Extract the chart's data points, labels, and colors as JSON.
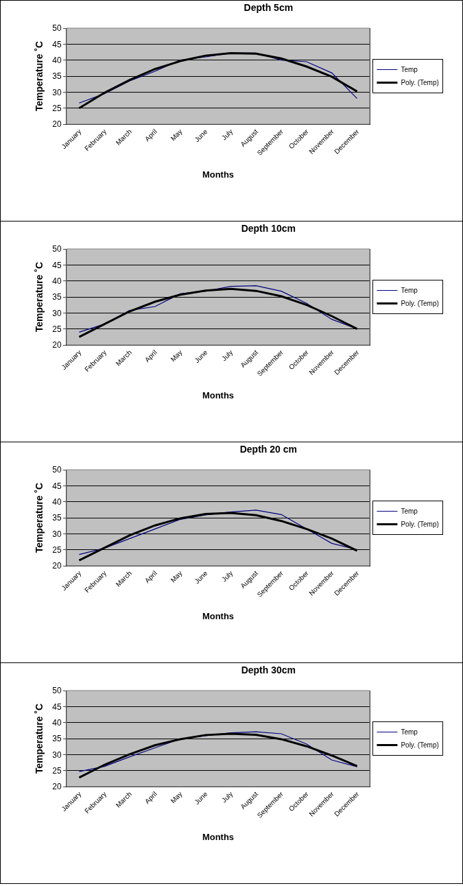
{
  "chart_data": [
    {
      "type": "line",
      "title": "Depth 5cm",
      "xlabel": "Months",
      "ylabel": "Temperature ˚C",
      "categories": [
        "January",
        "February",
        "March",
        "April",
        "May",
        "June",
        "July",
        "August",
        "September",
        "October",
        "November",
        "December"
      ],
      "series": [
        {
          "name": "Temp",
          "color": "#000080",
          "values": [
            26.6,
            29.5,
            33.5,
            36.5,
            40,
            41,
            42.2,
            42.2,
            40,
            39.5,
            36,
            28
          ]
        },
        {
          "name": "Poly. (Temp)",
          "color": "#000000",
          "values": [
            25,
            29.8,
            33.8,
            37.2,
            39.7,
            41.4,
            42.2,
            42,
            40.5,
            38,
            34.8,
            30.2
          ]
        }
      ],
      "ylim": [
        20,
        50
      ],
      "yticks": [
        20,
        25,
        30,
        35,
        40,
        45,
        50
      ],
      "grid": "y",
      "legend": "right",
      "marker": "none",
      "line_style": "solid"
    },
    {
      "type": "line",
      "title": "Depth 10cm",
      "xlabel": "Months",
      "ylabel": "Temperature ˚C",
      "categories": [
        "January",
        "February",
        "March",
        "April",
        "May",
        "June",
        "July",
        "August",
        "September",
        "October",
        "November",
        "December"
      ],
      "series": [
        {
          "name": "Temp",
          "color": "#000080",
          "values": [
            24,
            26.5,
            30.8,
            32,
            36,
            36.8,
            38.3,
            38.5,
            36.8,
            33,
            28,
            25
          ]
        },
        {
          "name": "Poly. (Temp)",
          "color": "#000000",
          "values": [
            22.5,
            26.5,
            30.5,
            33.5,
            35.7,
            37,
            37.5,
            36.9,
            35.2,
            32.5,
            29,
            25
          ]
        }
      ],
      "ylim": [
        20,
        50
      ],
      "yticks": [
        20,
        25,
        30,
        35,
        40,
        45,
        50
      ],
      "grid": "y",
      "legend": "right",
      "marker": "none",
      "line_style": "solid"
    },
    {
      "type": "line",
      "title": "Depth 20 cm",
      "xlabel": "Months",
      "ylabel": "Temperature ˚C",
      "categories": [
        "January",
        "February",
        "March",
        "April",
        "May",
        "June",
        "July",
        "August",
        "September",
        "October",
        "November",
        "December"
      ],
      "series": [
        {
          "name": "Temp",
          "color": "#000080",
          "values": [
            23.5,
            25.5,
            28.5,
            31.5,
            34.5,
            35.9,
            36.8,
            37.4,
            36,
            31.5,
            27,
            25
          ]
        },
        {
          "name": "Poly. (Temp)",
          "color": "#000000",
          "values": [
            21.7,
            25.6,
            29.5,
            32.6,
            34.8,
            36.2,
            36.5,
            35.8,
            34,
            31.5,
            28.5,
            24.7
          ]
        }
      ],
      "ylim": [
        20,
        50
      ],
      "yticks": [
        20,
        25,
        30,
        35,
        40,
        45,
        50
      ],
      "grid": "y",
      "legend": "right",
      "marker": "none",
      "line_style": "solid"
    },
    {
      "type": "line",
      "title": "Depth 30cm",
      "xlabel": "Months",
      "ylabel": "Temperature ˚C",
      "categories": [
        "January",
        "February",
        "March",
        "April",
        "May",
        "June",
        "July",
        "August",
        "September",
        "October",
        "November",
        "December"
      ],
      "series": [
        {
          "name": "Temp",
          "color": "#000080",
          "values": [
            24.7,
            26.3,
            29.3,
            32.1,
            34.9,
            35.9,
            36.8,
            37.1,
            36.5,
            33.3,
            28.3,
            26.2
          ]
        },
        {
          "name": "Poly. (Temp)",
          "color": "#000000",
          "values": [
            22.8,
            26.8,
            30.1,
            32.9,
            34.8,
            36.1,
            36.5,
            36.2,
            34.8,
            32.6,
            29.7,
            26.4
          ]
        }
      ],
      "ylim": [
        20,
        50
      ],
      "yticks": [
        20,
        25,
        30,
        35,
        40,
        45,
        50
      ],
      "grid": "y",
      "legend": "right",
      "marker": "none",
      "line_style": "solid"
    }
  ]
}
